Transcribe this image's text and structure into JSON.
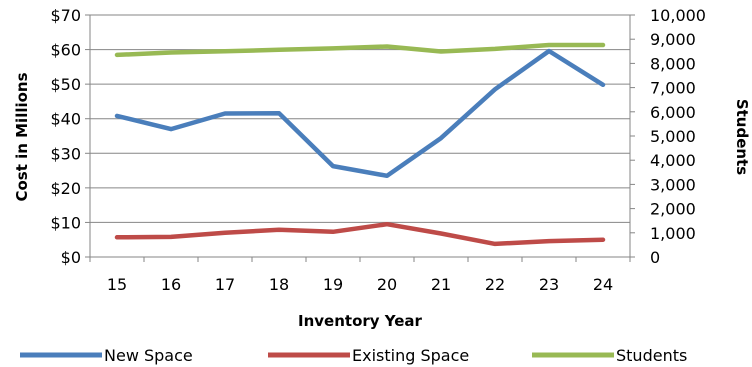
{
  "chart_data": {
    "type": "line",
    "categories": [
      "15",
      "16",
      "17",
      "18",
      "19",
      "20",
      "21",
      "22",
      "23",
      "24"
    ],
    "xlabel": "Inventory Year",
    "ylabel_left": "Cost in Millions",
    "ylabel_right": "Students",
    "ylim_left": [
      0,
      70
    ],
    "ylim_right": [
      0,
      10000
    ],
    "yticks_left": [
      "$0",
      "$10",
      "$20",
      "$30",
      "$40",
      "$50",
      "$60",
      "$70"
    ],
    "yticks_right": [
      "0",
      "1,000",
      "2,000",
      "3,000",
      "4,000",
      "5,000",
      "6,000",
      "7,000",
      "8,000",
      "9,000",
      "10,000"
    ],
    "grid": true,
    "legend_position": "bottom",
    "series": [
      {
        "name": "New Space",
        "axis": "left",
        "color": "#4a7ebb",
        "values": [
          40.8,
          37,
          41.5,
          41.6,
          26.3,
          23.5,
          34.4,
          48.5,
          59.6,
          49.8
        ]
      },
      {
        "name": "Existing Space",
        "axis": "left",
        "color": "#be4b48",
        "values": [
          5.7,
          5.8,
          7,
          7.9,
          7.3,
          9.5,
          6.8,
          3.8,
          4.6,
          5
        ]
      },
      {
        "name": "Students",
        "axis": "right",
        "color": "#98b954",
        "values": [
          8350,
          8450,
          8500,
          8560,
          8620,
          8700,
          8490,
          8600,
          8760,
          8760
        ]
      }
    ]
  }
}
